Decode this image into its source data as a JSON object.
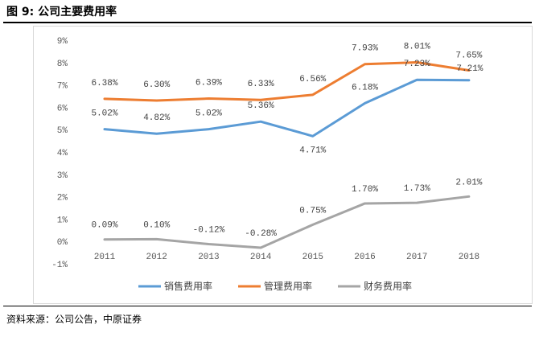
{
  "figure": {
    "title": "图 9:  公司主要费用率",
    "source": "资料来源：公司公告，中原证券"
  },
  "chart_data": {
    "type": "line",
    "title": "公司主要费用率",
    "categories": [
      "2011",
      "2012",
      "2013",
      "2014",
      "2015",
      "2016",
      "2017",
      "2018"
    ],
    "ylim": [
      -1,
      9
    ],
    "yticks": [
      -1,
      0,
      1,
      2,
      3,
      4,
      5,
      6,
      7,
      8,
      9
    ],
    "ytick_labels": [
      "-1%",
      "0%",
      "1%",
      "2%",
      "3%",
      "4%",
      "5%",
      "6%",
      "7%",
      "8%",
      "9%"
    ],
    "grid": false,
    "legend_position": "bottom-center",
    "series": [
      {
        "name": "销售费用率",
        "color": "#5b9bd5",
        "values": [
          5.02,
          4.82,
          5.02,
          5.36,
          4.71,
          6.18,
          7.23,
          7.21
        ],
        "labels": [
          "5.02%",
          "4.82%",
          "5.02%",
          "5.36%",
          "4.71%",
          "6.18%",
          "7.23%",
          "7.21%"
        ]
      },
      {
        "name": "管理费用率",
        "color": "#ed7d31",
        "values": [
          6.38,
          6.3,
          6.39,
          6.33,
          6.56,
          7.93,
          8.01,
          7.65
        ],
        "labels": [
          "6.38%",
          "6.30%",
          "6.39%",
          "6.33%",
          "6.56%",
          "7.93%",
          "8.01%",
          "7.65%"
        ]
      },
      {
        "name": "财务费用率",
        "color": "#a5a5a5",
        "values": [
          0.09,
          0.1,
          -0.12,
          -0.28,
          0.75,
          1.7,
          1.73,
          2.01
        ],
        "labels": [
          "0.09%",
          "0.10%",
          "-0.12%",
          "-0.28%",
          "0.75%",
          "1.70%",
          "1.73%",
          "2.01%"
        ]
      }
    ]
  }
}
